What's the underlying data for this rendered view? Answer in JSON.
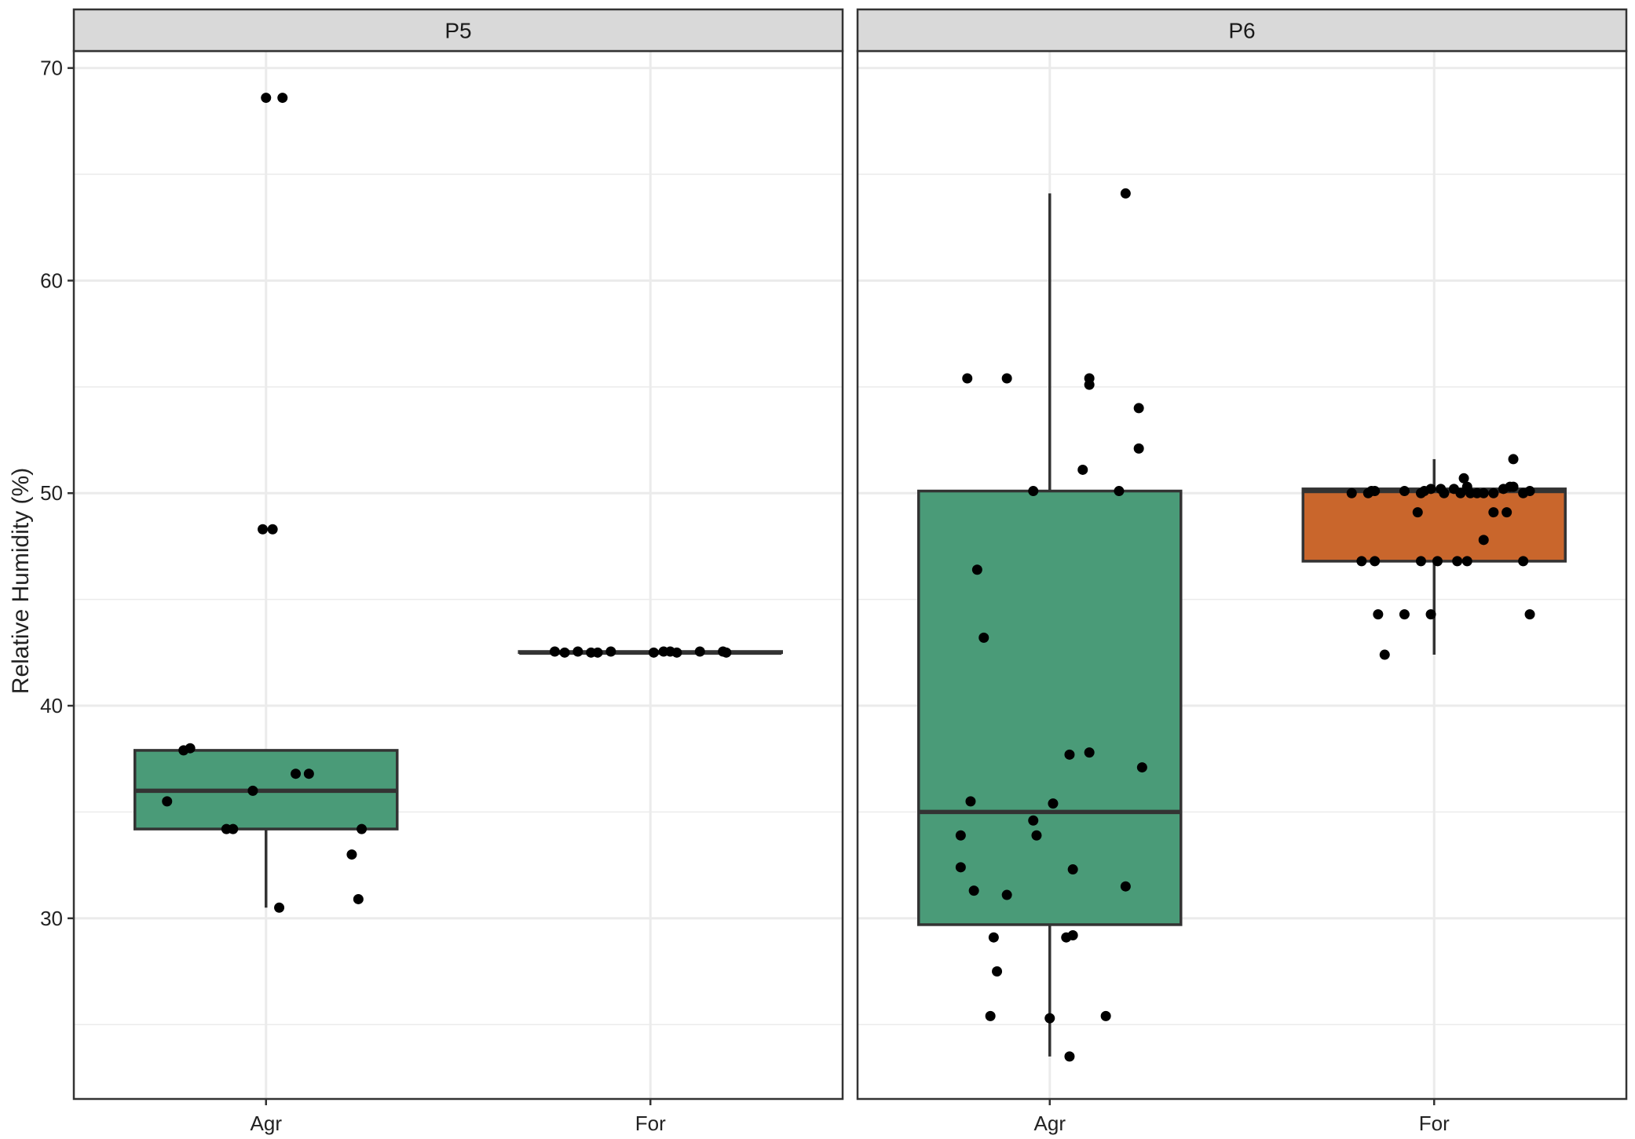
{
  "chart_data": {
    "type": "boxplot",
    "ylabel": "Relative Humidity (%)",
    "xlabel": "",
    "ylim": [
      21.5,
      70.8
    ],
    "y_ticks": [
      30,
      40,
      50,
      60,
      70
    ],
    "grid": true,
    "legend": "none",
    "colors": {
      "Agr": "#4a9b78",
      "For": "#c9662c",
      "outline": "#333333",
      "point": "#000000",
      "panel_bg": "#ffffff",
      "strip_bg": "#d9d9d9",
      "grid": "#ebebeb"
    },
    "categories": [
      "Agr",
      "For"
    ],
    "panels": [
      {
        "label": "P5",
        "groups": [
          {
            "category": "Agr",
            "box": {
              "whisker_low": 30.5,
              "q1": 34.2,
              "median": 36.0,
              "q3": 37.9,
              "whisker_high": 37.9
            },
            "points": [
              {
                "x": -0.3,
                "y": 35.5
              },
              {
                "x": -0.25,
                "y": 37.9
              },
              {
                "x": -0.23,
                "y": 38.0
              },
              {
                "x": -0.12,
                "y": 34.2
              },
              {
                "x": -0.1,
                "y": 34.2
              },
              {
                "x": -0.04,
                "y": 36.0
              },
              {
                "x": 0.0,
                "y": 68.6
              },
              {
                "x": 0.05,
                "y": 68.6
              },
              {
                "x": -0.01,
                "y": 48.3
              },
              {
                "x": 0.02,
                "y": 48.3
              },
              {
                "x": 0.04,
                "y": 30.5
              },
              {
                "x": 0.09,
                "y": 36.8
              },
              {
                "x": 0.13,
                "y": 36.8
              },
              {
                "x": 0.26,
                "y": 33.0
              },
              {
                "x": 0.28,
                "y": 30.9
              },
              {
                "x": 0.29,
                "y": 34.2
              }
            ]
          },
          {
            "category": "For",
            "box": {
              "whisker_low": 42.5,
              "q1": 42.5,
              "median": 42.5,
              "q3": 42.55,
              "whisker_high": 42.55
            },
            "points": [
              {
                "x": -0.29,
                "y": 42.55
              },
              {
                "x": -0.26,
                "y": 42.5
              },
              {
                "x": -0.22,
                "y": 42.55
              },
              {
                "x": -0.18,
                "y": 42.5
              },
              {
                "x": -0.16,
                "y": 42.5
              },
              {
                "x": -0.12,
                "y": 42.55
              },
              {
                "x": 0.01,
                "y": 42.5
              },
              {
                "x": 0.04,
                "y": 42.55
              },
              {
                "x": 0.06,
                "y": 42.55
              },
              {
                "x": 0.08,
                "y": 42.5
              },
              {
                "x": 0.15,
                "y": 42.55
              },
              {
                "x": 0.22,
                "y": 42.55
              },
              {
                "x": 0.23,
                "y": 42.5
              }
            ]
          }
        ]
      },
      {
        "label": "P6",
        "groups": [
          {
            "category": "Agr",
            "box": {
              "whisker_low": 23.5,
              "q1": 29.7,
              "median": 35.0,
              "q3": 50.1,
              "whisker_high": 64.1
            },
            "points": [
              {
                "x": -0.27,
                "y": 33.9
              },
              {
                "x": -0.24,
                "y": 35.5
              },
              {
                "x": -0.27,
                "y": 32.4
              },
              {
                "x": -0.23,
                "y": 31.3
              },
              {
                "x": -0.25,
                "y": 55.4
              },
              {
                "x": -0.22,
                "y": 46.4
              },
              {
                "x": -0.2,
                "y": 43.2
              },
              {
                "x": -0.18,
                "y": 25.4
              },
              {
                "x": -0.17,
                "y": 29.1
              },
              {
                "x": -0.16,
                "y": 27.5
              },
              {
                "x": -0.13,
                "y": 55.4
              },
              {
                "x": -0.13,
                "y": 31.1
              },
              {
                "x": -0.05,
                "y": 34.6
              },
              {
                "x": -0.04,
                "y": 33.9
              },
              {
                "x": -0.05,
                "y": 50.1
              },
              {
                "x": 0.0,
                "y": 25.3
              },
              {
                "x": 0.01,
                "y": 35.4
              },
              {
                "x": 0.05,
                "y": 29.1
              },
              {
                "x": 0.06,
                "y": 23.5
              },
              {
                "x": 0.06,
                "y": 37.7
              },
              {
                "x": 0.07,
                "y": 29.2
              },
              {
                "x": 0.07,
                "y": 32.3
              },
              {
                "x": 0.1,
                "y": 51.1
              },
              {
                "x": 0.12,
                "y": 55.4
              },
              {
                "x": 0.12,
                "y": 55.1
              },
              {
                "x": 0.12,
                "y": 37.8
              },
              {
                "x": 0.17,
                "y": 25.4
              },
              {
                "x": 0.21,
                "y": 50.1
              },
              {
                "x": 0.23,
                "y": 64.1
              },
              {
                "x": 0.23,
                "y": 31.5
              },
              {
                "x": 0.27,
                "y": 52.1
              },
              {
                "x": 0.27,
                "y": 54.0
              },
              {
                "x": 0.28,
                "y": 37.1
              }
            ]
          },
          {
            "category": "For",
            "box": {
              "whisker_low": 42.4,
              "q1": 46.8,
              "median": 50.1,
              "q3": 50.2,
              "whisker_high": 51.6
            },
            "points": [
              {
                "x": -0.25,
                "y": 50.0
              },
              {
                "x": -0.22,
                "y": 46.8
              },
              {
                "x": -0.2,
                "y": 50.0
              },
              {
                "x": -0.19,
                "y": 50.1
              },
              {
                "x": -0.18,
                "y": 46.8
              },
              {
                "x": -0.18,
                "y": 50.1
              },
              {
                "x": -0.17,
                "y": 44.3
              },
              {
                "x": -0.15,
                "y": 42.4
              },
              {
                "x": -0.09,
                "y": 50.1
              },
              {
                "x": -0.09,
                "y": 44.3
              },
              {
                "x": -0.05,
                "y": 49.1
              },
              {
                "x": -0.04,
                "y": 46.8
              },
              {
                "x": -0.04,
                "y": 50.0
              },
              {
                "x": -0.03,
                "y": 50.1
              },
              {
                "x": -0.01,
                "y": 44.3
              },
              {
                "x": -0.01,
                "y": 50.2
              },
              {
                "x": 0.01,
                "y": 46.8
              },
              {
                "x": 0.02,
                "y": 50.2
              },
              {
                "x": 0.03,
                "y": 50.0
              },
              {
                "x": 0.06,
                "y": 50.2
              },
              {
                "x": 0.07,
                "y": 46.8
              },
              {
                "x": 0.08,
                "y": 50.0
              },
              {
                "x": 0.09,
                "y": 50.7
              },
              {
                "x": 0.1,
                "y": 50.3
              },
              {
                "x": 0.1,
                "y": 46.8
              },
              {
                "x": 0.11,
                "y": 50.0
              },
              {
                "x": 0.13,
                "y": 50.0
              },
              {
                "x": 0.15,
                "y": 47.8
              },
              {
                "x": 0.15,
                "y": 50.0
              },
              {
                "x": 0.18,
                "y": 49.1
              },
              {
                "x": 0.18,
                "y": 50.0
              },
              {
                "x": 0.21,
                "y": 50.2
              },
              {
                "x": 0.22,
                "y": 49.1
              },
              {
                "x": 0.23,
                "y": 50.3
              },
              {
                "x": 0.24,
                "y": 51.6
              },
              {
                "x": 0.24,
                "y": 50.3
              },
              {
                "x": 0.27,
                "y": 46.8
              },
              {
                "x": 0.27,
                "y": 50.0
              },
              {
                "x": 0.29,
                "y": 44.3
              },
              {
                "x": 0.29,
                "y": 50.1
              }
            ]
          }
        ]
      }
    ]
  }
}
